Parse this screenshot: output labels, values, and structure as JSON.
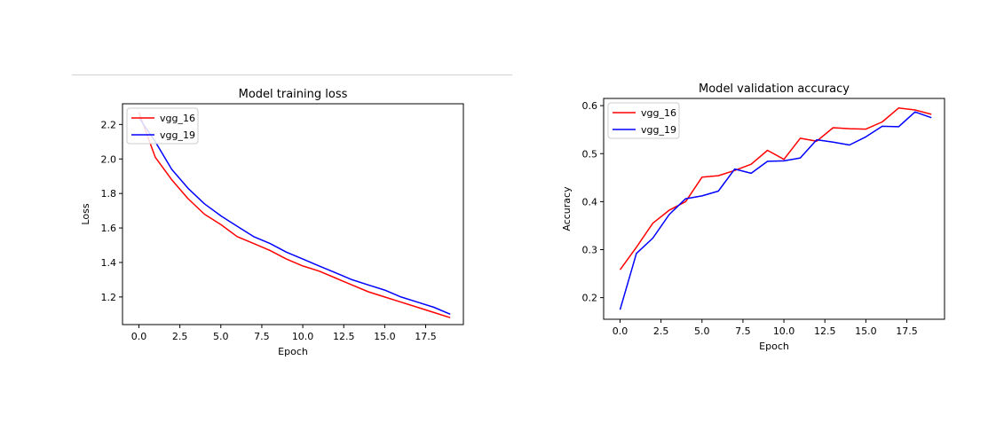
{
  "colors": {
    "vgg_16": "#ff0000",
    "vgg_19": "#0000ff"
  },
  "chart_data": [
    {
      "type": "line",
      "title": "Model training loss",
      "xlabel": "Epoch",
      "ylabel": "Loss",
      "xlim": [
        -1,
        19.8
      ],
      "ylim": [
        1.04,
        2.32
      ],
      "xticks": [
        "0.0",
        "2.5",
        "5.0",
        "7.5",
        "10.0",
        "12.5",
        "15.0",
        "17.5"
      ],
      "yticks": [
        "1.2",
        "1.4",
        "1.6",
        "1.8",
        "2.0",
        "2.2"
      ],
      "legend": "upper left",
      "grid": false,
      "x": [
        0,
        1,
        2,
        3,
        4,
        5,
        6,
        7,
        8,
        9,
        10,
        11,
        12,
        13,
        14,
        15,
        16,
        17,
        18,
        19
      ],
      "series": [
        {
          "name": "vgg_16",
          "values": [
            2.27,
            2.01,
            1.88,
            1.77,
            1.68,
            1.62,
            1.55,
            1.51,
            1.47,
            1.42,
            1.38,
            1.35,
            1.31,
            1.27,
            1.23,
            1.2,
            1.17,
            1.14,
            1.11,
            1.08
          ]
        },
        {
          "name": "vgg_19",
          "values": [
            2.24,
            2.1,
            1.94,
            1.83,
            1.74,
            1.67,
            1.61,
            1.55,
            1.51,
            1.46,
            1.42,
            1.38,
            1.34,
            1.3,
            1.27,
            1.24,
            1.2,
            1.17,
            1.14,
            1.1
          ]
        }
      ]
    },
    {
      "type": "line",
      "title": "Model validation accuracy",
      "xlabel": "Epoch",
      "ylabel": "Accuracy",
      "xlim": [
        -1,
        19.8
      ],
      "ylim": [
        0.155,
        0.615
      ],
      "xticks": [
        "0.0",
        "2.5",
        "5.0",
        "7.5",
        "10.0",
        "12.5",
        "15.0",
        "17.5"
      ],
      "yticks": [
        "0.2",
        "0.3",
        "0.4",
        "0.5",
        "0.6"
      ],
      "legend": "upper left",
      "grid": false,
      "x": [
        0,
        1,
        2,
        3,
        4,
        5,
        6,
        7,
        8,
        9,
        10,
        11,
        12,
        13,
        14,
        15,
        16,
        17,
        18,
        19
      ],
      "series": [
        {
          "name": "vgg_16",
          "values": [
            0.258,
            0.305,
            0.355,
            0.382,
            0.4,
            0.451,
            0.454,
            0.465,
            0.478,
            0.507,
            0.488,
            0.532,
            0.526,
            0.554,
            0.552,
            0.551,
            0.566,
            0.595,
            0.591,
            0.582
          ]
        },
        {
          "name": "vgg_19",
          "values": [
            0.175,
            0.292,
            0.324,
            0.373,
            0.406,
            0.412,
            0.422,
            0.468,
            0.459,
            0.484,
            0.485,
            0.491,
            0.529,
            0.524,
            0.518,
            0.535,
            0.557,
            0.556,
            0.587,
            0.575
          ]
        }
      ]
    }
  ]
}
